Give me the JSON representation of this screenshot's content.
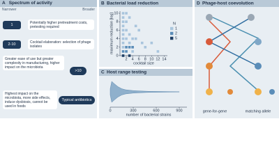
{
  "panel_a": {
    "letter": "A",
    "title": "Spectrum of activity",
    "narrow": "Narrower",
    "broad": "Broader",
    "items": [
      {
        "label": "1",
        "text": "Potentially higher pretreatment costs, pretesting required"
      },
      {
        "label": "2-10",
        "text": "Cocktail elaboration: selection of phage isolates"
      },
      {
        "label": ">10",
        "text": "Greater ease of use but greater complexity in manufacturing, higher impact on the microbiota"
      },
      {
        "label": "Typical antibiotics",
        "text": "Highest impact on the microbiota, more side effects, induce dysbiosis, cannot be used in foods"
      }
    ]
  },
  "panel_d": {
    "letter": "D",
    "title": "Phage-host coevolution",
    "left": "gene-for-gene",
    "right": "matching allele"
  },
  "chart_data": [
    {
      "type": "scatter",
      "letter": "B",
      "title": "Bacterial load reduction",
      "x_label": "cocktail size",
      "y_label": "maximum reduction [log]",
      "legend_title": "N",
      "xlim": [
        0,
        15
      ],
      "ylim": [
        0,
        10.5
      ],
      "xticks": [
        2,
        4,
        6,
        8,
        10,
        12,
        14
      ],
      "yticks": [
        0,
        2,
        4,
        6,
        8,
        10
      ],
      "series": [
        {
          "name": "1",
          "color": "#a9c5dd",
          "x": [
            1,
            1,
            1,
            1,
            1,
            1,
            1,
            1,
            1,
            2,
            2,
            2,
            2,
            3,
            3,
            3,
            4,
            4,
            5,
            5,
            6,
            7,
            8,
            10,
            12
          ],
          "values": [
            10,
            9,
            8,
            7,
            6,
            5,
            4,
            3,
            2,
            10,
            8,
            6,
            4,
            9,
            5,
            3,
            4,
            1,
            7,
            4,
            6,
            3,
            2,
            3,
            1
          ]
        },
        {
          "name": "2",
          "color": "#5b8db8",
          "x": [
            1,
            2,
            2,
            3,
            4
          ],
          "values": [
            1,
            2,
            1,
            2,
            2
          ]
        },
        {
          "name": "5",
          "color": "#1f3f66",
          "x": [
            1,
            3
          ],
          "values": [
            0,
            0
          ]
        }
      ]
    },
    {
      "type": "violin",
      "letter": "C",
      "title": "Host range testing",
      "x_label": "number of bacterial strains",
      "color": "#8fb0cc",
      "xlim": [
        0,
        1000
      ],
      "xticks": [
        0,
        300,
        600,
        900
      ],
      "x": [
        0,
        20,
        50,
        100,
        150,
        200,
        300,
        400,
        500,
        600,
        700,
        800,
        900
      ],
      "values": [
        0.3,
        1,
        0.8,
        0.5,
        0.3,
        0.2,
        0.12,
        0.08,
        0.05,
        0.04,
        0.03,
        0.02,
        0.01
      ]
    }
  ]
}
